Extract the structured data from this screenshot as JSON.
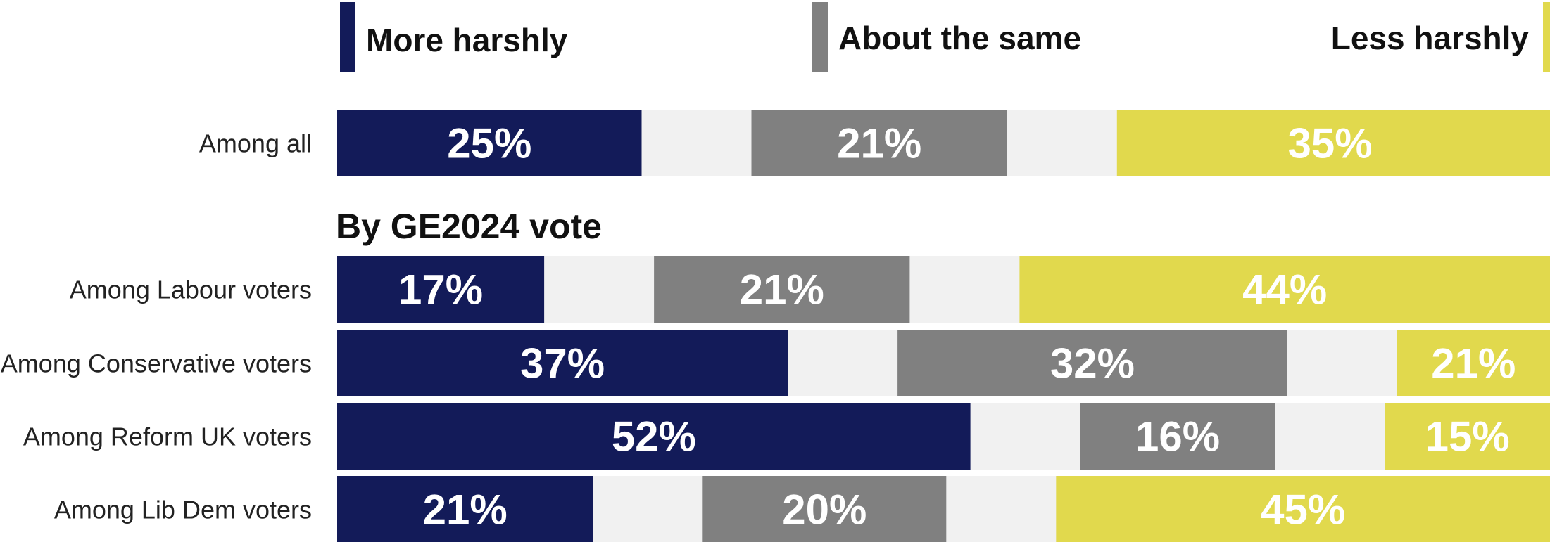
{
  "chart_data": {
    "type": "bar",
    "orientation": "horizontal",
    "stacked": true,
    "legend": {
      "placement": "top",
      "entries": [
        {
          "label": "More harshly",
          "color": "#131b59"
        },
        {
          "label": "About the same",
          "color": "#808080"
        },
        {
          "label": "Less harshly",
          "color": "#e1d94d"
        }
      ]
    },
    "track_color": "#f1f1f1",
    "section_heading": "By GE2024 vote",
    "groups": [
      {
        "heading": "",
        "rows": [
          {
            "label": "Among all",
            "values": [
              25,
              21,
              35
            ],
            "value_labels": [
              "25%",
              "21%",
              "35%"
            ]
          }
        ]
      },
      {
        "heading": "By GE2024 vote",
        "rows": [
          {
            "label": "Among Labour voters",
            "values": [
              17,
              21,
              44
            ],
            "value_labels": [
              "17%",
              "21%",
              "44%"
            ]
          },
          {
            "label": "Among Conservative voters",
            "values": [
              37,
              32,
              21
            ],
            "value_labels": [
              "37%",
              "32%",
              "21%"
            ]
          },
          {
            "label": "Among Reform UK voters",
            "values": [
              52,
              16,
              15
            ],
            "value_labels": [
              "52%",
              "16%",
              "15%"
            ]
          },
          {
            "label": "Among Lib Dem voters",
            "values": [
              21,
              20,
              45
            ],
            "value_labels": [
              "21%",
              "20%",
              "45%"
            ]
          }
        ]
      }
    ]
  }
}
